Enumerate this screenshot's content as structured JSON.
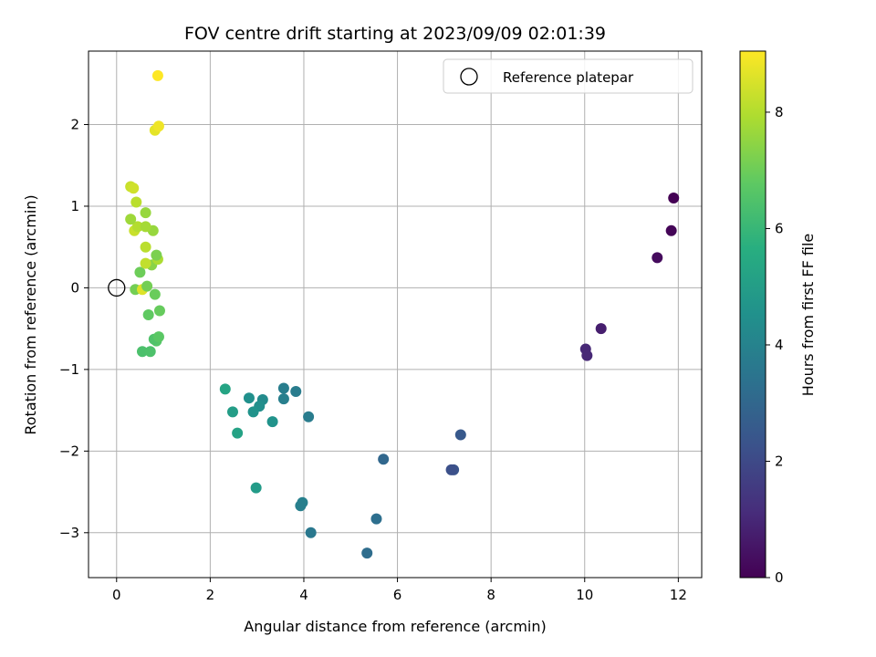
{
  "chart_data": {
    "type": "scatter",
    "title": "FOV centre drift starting at 2023/09/09 02:01:39",
    "xlabel": "Angular distance from reference (arcmin)",
    "ylabel": "Rotation from reference (arcmin)",
    "xlim": [
      -0.6,
      12.5
    ],
    "ylim": [
      -3.55,
      2.9
    ],
    "xticks": [
      0,
      2,
      4,
      6,
      8,
      10,
      12
    ],
    "yticks": [
      -3,
      -2,
      -1,
      0,
      1,
      2
    ],
    "grid": true,
    "legend": {
      "placement": "top-right",
      "entries": [
        "Reference platepar"
      ]
    },
    "colorbar": {
      "label": "Hours from first FF file",
      "range": [
        0,
        9.05
      ],
      "ticks": [
        0,
        2,
        4,
        6,
        8
      ],
      "colormap": "viridis"
    },
    "reference_point": {
      "x": 0,
      "y": 0
    },
    "points": [
      {
        "x": 11.9,
        "y": 1.1,
        "c": 0.0
      },
      {
        "x": 11.85,
        "y": 0.7,
        "c": 0.1
      },
      {
        "x": 11.55,
        "y": 0.37,
        "c": 0.25
      },
      {
        "x": 10.35,
        "y": -0.5,
        "c": 0.75
      },
      {
        "x": 10.02,
        "y": -0.75,
        "c": 1.0
      },
      {
        "x": 10.05,
        "y": -0.83,
        "c": 1.0
      },
      {
        "x": 7.35,
        "y": -1.8,
        "c": 2.5
      },
      {
        "x": 7.2,
        "y": -2.23,
        "c": 2.35
      },
      {
        "x": 7.15,
        "y": -2.23,
        "c": 2.2
      },
      {
        "x": 5.7,
        "y": -2.1,
        "c": 3.0
      },
      {
        "x": 5.55,
        "y": -2.83,
        "c": 3.3
      },
      {
        "x": 5.35,
        "y": -3.25,
        "c": 3.2
      },
      {
        "x": 4.15,
        "y": -3.0,
        "c": 3.6
      },
      {
        "x": 3.97,
        "y": -2.63,
        "c": 3.9
      },
      {
        "x": 3.93,
        "y": -2.67,
        "c": 3.85
      },
      {
        "x": 4.1,
        "y": -1.58,
        "c": 3.75
      },
      {
        "x": 3.83,
        "y": -1.27,
        "c": 3.75
      },
      {
        "x": 3.57,
        "y": -1.23,
        "c": 3.8
      },
      {
        "x": 3.57,
        "y": -1.36,
        "c": 3.85
      },
      {
        "x": 3.33,
        "y": -1.64,
        "c": 4.6
      },
      {
        "x": 3.12,
        "y": -1.37,
        "c": 4.3
      },
      {
        "x": 3.05,
        "y": -1.45,
        "c": 4.45
      },
      {
        "x": 2.92,
        "y": -1.52,
        "c": 4.6
      },
      {
        "x": 2.83,
        "y": -1.35,
        "c": 4.5
      },
      {
        "x": 2.98,
        "y": -2.45,
        "c": 4.9
      },
      {
        "x": 2.58,
        "y": -1.78,
        "c": 5.2
      },
      {
        "x": 2.48,
        "y": -1.52,
        "c": 5.0
      },
      {
        "x": 2.32,
        "y": -1.24,
        "c": 5.25
      },
      {
        "x": 0.55,
        "y": -0.78,
        "c": 6.4
      },
      {
        "x": 0.72,
        "y": -0.78,
        "c": 6.45
      },
      {
        "x": 0.85,
        "y": -0.65,
        "c": 6.6
      },
      {
        "x": 0.8,
        "y": -0.63,
        "c": 6.5
      },
      {
        "x": 0.9,
        "y": -0.6,
        "c": 6.7
      },
      {
        "x": 0.92,
        "y": -0.28,
        "c": 6.9
      },
      {
        "x": 0.68,
        "y": -0.33,
        "c": 6.8
      },
      {
        "x": 0.82,
        "y": -0.08,
        "c": 6.95
      },
      {
        "x": 0.4,
        "y": -0.02,
        "c": 7.1
      },
      {
        "x": 0.55,
        "y": -0.02,
        "c": 8.6
      },
      {
        "x": 0.65,
        "y": 0.02,
        "c": 7.1
      },
      {
        "x": 0.5,
        "y": 0.19,
        "c": 7.0
      },
      {
        "x": 0.75,
        "y": 0.28,
        "c": 7.4
      },
      {
        "x": 0.62,
        "y": 0.3,
        "c": 8.2
      },
      {
        "x": 0.88,
        "y": 0.35,
        "c": 7.9
      },
      {
        "x": 0.85,
        "y": 0.4,
        "c": 7.2
      },
      {
        "x": 0.62,
        "y": 0.5,
        "c": 8.1
      },
      {
        "x": 0.78,
        "y": 0.7,
        "c": 7.6
      },
      {
        "x": 0.38,
        "y": 0.7,
        "c": 8.3
      },
      {
        "x": 0.45,
        "y": 0.75,
        "c": 8.0
      },
      {
        "x": 0.62,
        "y": 0.75,
        "c": 7.8
      },
      {
        "x": 0.3,
        "y": 0.84,
        "c": 7.7
      },
      {
        "x": 0.62,
        "y": 0.92,
        "c": 7.6
      },
      {
        "x": 0.42,
        "y": 1.05,
        "c": 8.1
      },
      {
        "x": 0.3,
        "y": 1.24,
        "c": 8.3
      },
      {
        "x": 0.36,
        "y": 1.22,
        "c": 8.4
      },
      {
        "x": 0.82,
        "y": 1.93,
        "c": 8.7
      },
      {
        "x": 0.9,
        "y": 1.98,
        "c": 8.85
      },
      {
        "x": 0.88,
        "y": 2.6,
        "c": 9.05
      }
    ]
  }
}
